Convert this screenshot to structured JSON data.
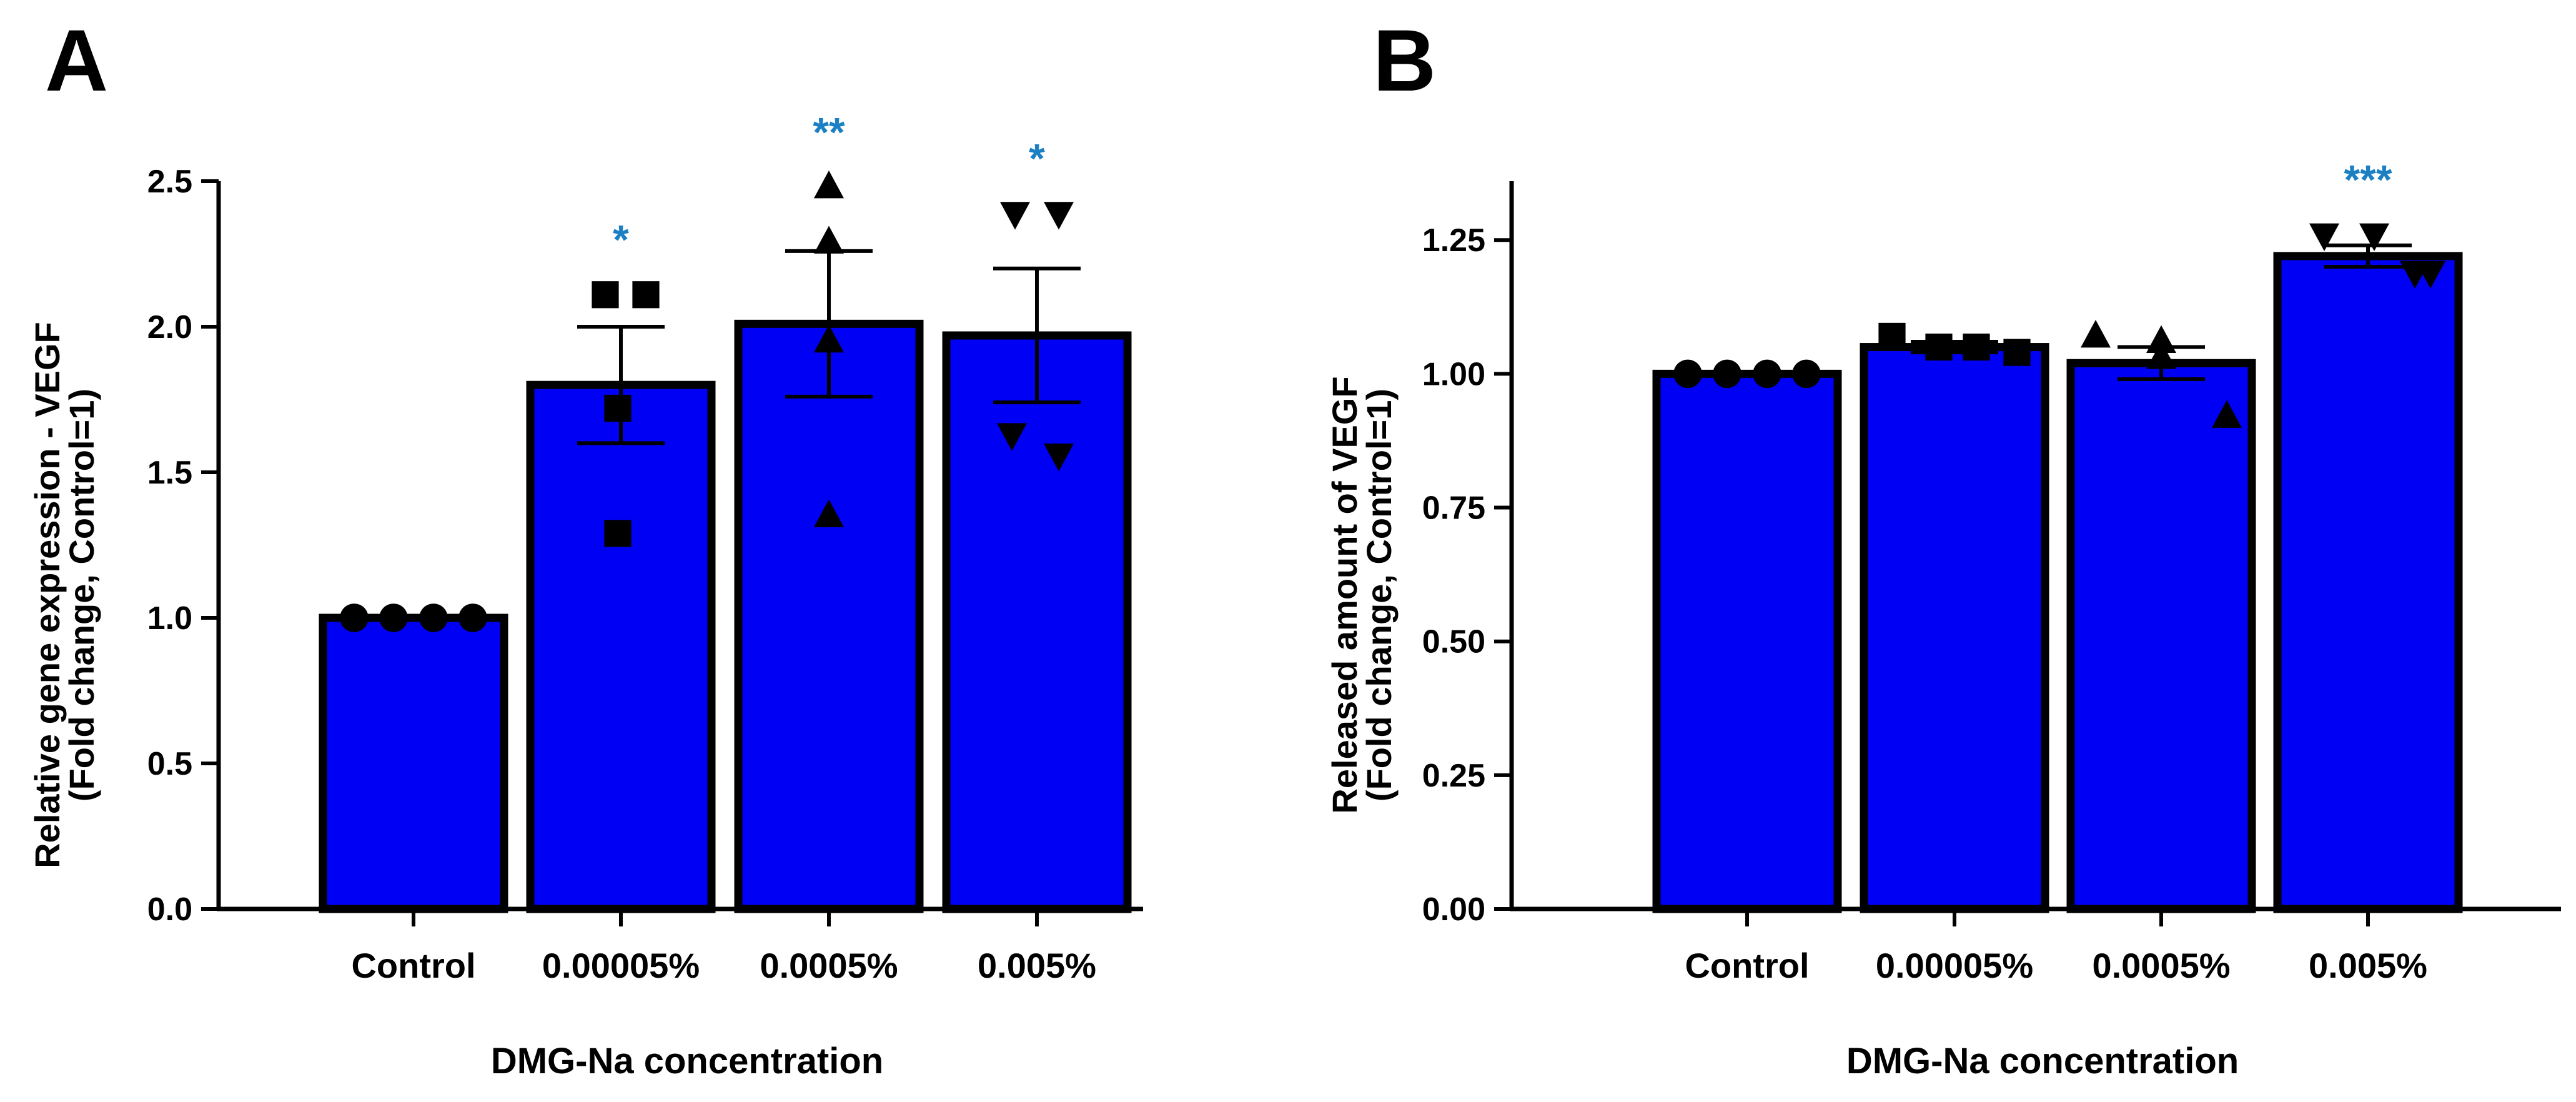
{
  "chart_data": [
    {
      "panel": "A",
      "type": "bar",
      "categories": [
        "Control",
        "0.00005%",
        "0.0005%",
        "0.005%"
      ],
      "values": [
        1.0,
        1.8,
        2.01,
        1.97
      ],
      "sem": [
        0.0,
        0.2,
        0.25,
        0.23
      ],
      "points": [
        [
          1.0,
          1.0,
          1.0,
          1.0
        ],
        [
          2.11,
          2.11,
          1.72,
          1.29
        ],
        [
          2.48,
          2.29,
          1.95,
          1.35
        ],
        [
          2.39,
          2.39,
          1.63,
          1.56
        ]
      ],
      "markers": [
        "circle",
        "square",
        "triangle-up",
        "triangle-down"
      ],
      "significance": [
        "",
        "*",
        "**",
        "*"
      ],
      "xlabel": "DMG-Na concentration",
      "ylabel": [
        "Relative gene expression - VEGF",
        "(Fold change, Control=1)"
      ],
      "ylim": [
        0,
        2.5
      ],
      "yticks": [
        "0.0",
        "0.5",
        "1.0",
        "1.5",
        "2.0",
        "2.5"
      ]
    },
    {
      "panel": "B",
      "type": "bar",
      "categories": [
        "Control",
        "0.00005%",
        "0.0005%",
        "0.005%"
      ],
      "values": [
        1.0,
        1.05,
        1.02,
        1.22
      ],
      "sem": [
        0.0,
        0.01,
        0.03,
        0.02
      ],
      "points": [
        [
          1.0,
          1.0,
          1.0,
          1.0
        ],
        [
          1.07,
          1.05,
          1.05,
          1.04
        ],
        [
          1.07,
          1.06,
          1.03,
          0.92
        ],
        [
          1.26,
          1.26,
          1.19,
          1.19
        ]
      ],
      "markers": [
        "circle",
        "square",
        "triangle-up",
        "triangle-down"
      ],
      "significance": [
        "",
        "",
        "",
        "***"
      ],
      "xlabel": "DMG-Na concentration",
      "ylabel": [
        "Released amount of VEGF",
        "(Fold change, Control=1)"
      ],
      "ylim": [
        0,
        1.36
      ],
      "yticks": [
        "0.00",
        "0.25",
        "0.50",
        "0.75",
        "1.00",
        "1.25"
      ]
    }
  ],
  "colors": {
    "bar": "#0000f5",
    "bar_edge": "#000000",
    "significance": "#1b7fc4",
    "axis": "#000000"
  }
}
